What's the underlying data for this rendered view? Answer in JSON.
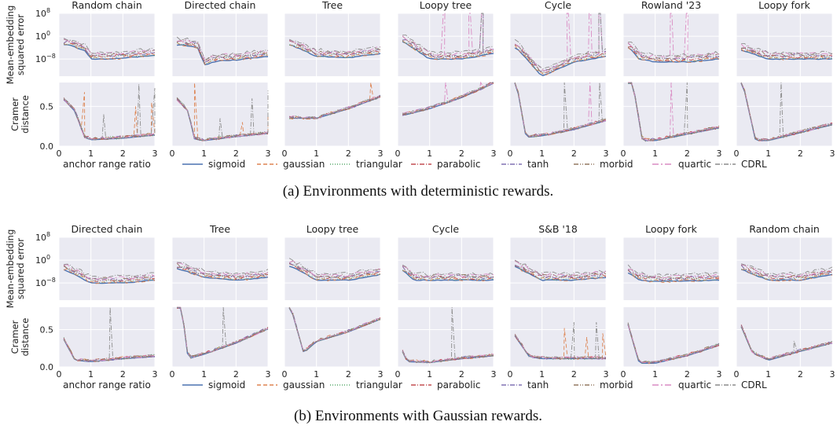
{
  "figure": {
    "captions": [
      "(a) Environments with deterministic rewards.",
      "(b) Environments with Gaussian rewards."
    ],
    "ylabel_top": [
      "Mean-embedding",
      "squared error"
    ],
    "ylabel_bottom": [
      "Cramer",
      "distance"
    ],
    "xlabel": "anchor range ratio",
    "yticks_top": [
      "10",
      "10",
      "10"
    ],
    "yticks_top_exp": [
      "8",
      "0",
      "−8"
    ],
    "yticks_bottom": [
      "0.5",
      "0.0"
    ],
    "xticks": [
      "0",
      "1",
      "2",
      "3"
    ],
    "legend": [
      {
        "name": "sigmoid",
        "color": "#4c72b0",
        "dash": ""
      },
      {
        "name": "gaussian",
        "color": "#dd8452",
        "dash": "5,3"
      },
      {
        "name": "triangular",
        "color": "#55a868",
        "dash": "1,2"
      },
      {
        "name": "parabolic",
        "color": "#c44e52",
        "dash": "6,2,1,2"
      },
      {
        "name": "tanh",
        "color": "#8172b3",
        "dash": "6,2,1,2"
      },
      {
        "name": "morbid",
        "color": "#937860",
        "dash": "6,2,1,2,1,2"
      },
      {
        "name": "quartic",
        "color": "#da8bc3",
        "dash": "8,3,2,3"
      },
      {
        "name": "CDRL",
        "color": "#8c8c8c",
        "dash": "6,2,1,2"
      }
    ],
    "rows": [
      {
        "titles": [
          "Random chain",
          "Directed chain",
          "Tree",
          "Loopy tree",
          "Cycle",
          "Rowland '23",
          "Loopy fork"
        ]
      },
      {
        "titles": [
          "Directed chain",
          "Tree",
          "Loopy tree",
          "Cycle",
          "S&B '18",
          "Loopy fork",
          "Random chain"
        ]
      }
    ]
  },
  "chart_data": {
    "type": "line",
    "xlabel": "anchor range ratio",
    "xlim": [
      0,
      3
    ],
    "series_names": [
      "sigmoid",
      "gaussian",
      "triangular",
      "parabolic",
      "tanh",
      "morbid",
      "quartic",
      "CDRL"
    ],
    "panels": [
      {
        "group": "deterministic",
        "env": "Random chain",
        "error_log10": [
          [
            0.3,
            -2
          ],
          [
            0.8,
            -4
          ],
          [
            1,
            -7
          ],
          [
            1.5,
            -7
          ],
          [
            2,
            -6.6
          ],
          [
            3,
            -5.8
          ]
        ],
        "cramer": [
          [
            0,
            0.66
          ],
          [
            0.5,
            0.45
          ],
          [
            0.8,
            0.12
          ],
          [
            1,
            0.09
          ],
          [
            2,
            0.11
          ],
          [
            3,
            0.15
          ]
        ],
        "spikes": {
          "gaussian": [
            [
              0.8,
              0.68
            ],
            [
              2.4,
              0.5
            ],
            [
              2.9,
              0.55
            ]
          ],
          "CDRL": [
            [
              1.4,
              0.4
            ],
            [
              2.5,
              0.78
            ],
            [
              3,
              0.73
            ]
          ]
        }
      },
      {
        "group": "deterministic",
        "env": "Directed chain",
        "error_log10": [
          [
            0.3,
            -2
          ],
          [
            0.8,
            -3
          ],
          [
            1,
            -9
          ],
          [
            1.5,
            -7.5
          ],
          [
            2,
            -7.3
          ],
          [
            3,
            -6
          ]
        ],
        "cramer": [
          [
            0,
            0.66
          ],
          [
            0.5,
            0.45
          ],
          [
            0.7,
            0.1
          ],
          [
            1,
            0.08
          ],
          [
            2,
            0.13
          ],
          [
            3,
            0.17
          ]
        ],
        "spikes": {
          "gaussian": [
            [
              0.7,
              0.8
            ],
            [
              2.2,
              0.3
            ],
            [
              3,
              0.4
            ]
          ],
          "CDRL": [
            [
              1.5,
              0.35
            ],
            [
              2.5,
              0.6
            ],
            [
              3,
              0.7
            ]
          ]
        }
      },
      {
        "group": "deterministic",
        "env": "Tree",
        "error_log10": [
          [
            0.2,
            -2
          ],
          [
            1,
            -6
          ],
          [
            2,
            -6.5
          ],
          [
            3,
            -5
          ]
        ],
        "cramer": [
          [
            1,
            0.36
          ],
          [
            2,
            0.48
          ],
          [
            3,
            0.63
          ]
        ],
        "spikes": {
          "gaussian": [
            [
              2.7,
              0.8
            ]
          ]
        }
      },
      {
        "group": "deterministic",
        "env": "Loopy tree",
        "error_log10": [
          [
            0.2,
            -1
          ],
          [
            1,
            -7
          ],
          [
            2,
            -7
          ],
          [
            3,
            -5
          ]
        ],
        "cramer": [
          [
            0.2,
            0.4
          ],
          [
            1,
            0.48
          ],
          [
            2,
            0.62
          ],
          [
            3,
            0.8
          ]
        ],
        "spikes": {
          "quartic": [
            [
              1.5,
              8
            ],
            [
              2.6,
              8
            ]
          ],
          "tanh": [
            [
              2.9,
              8
            ]
          ]
        }
      },
      {
        "group": "deterministic",
        "env": "Cycle",
        "error_log10": [
          [
            0.2,
            -3
          ],
          [
            1,
            -13
          ],
          [
            2,
            -8
          ],
          [
            3,
            -6
          ]
        ],
        "cramer": [
          [
            0.2,
            0.8
          ],
          [
            0.5,
            0.12
          ],
          [
            1,
            0.14
          ],
          [
            2,
            0.22
          ],
          [
            3,
            0.33
          ]
        ],
        "spikes": {
          "quartic": [
            [
              2.5,
              8
            ]
          ],
          "CDRL": [
            [
              1.7,
              8
            ],
            [
              2.8,
              8
            ]
          ]
        }
      },
      {
        "group": "deterministic",
        "env": "Rowland '23",
        "error_log10": [
          [
            0.2,
            -3
          ],
          [
            0.5,
            -7
          ],
          [
            1,
            -8
          ],
          [
            2,
            -8
          ],
          [
            3,
            -7
          ]
        ],
        "cramer": [
          [
            0.3,
            0.8
          ],
          [
            0.6,
            0.08
          ],
          [
            1,
            0.08
          ],
          [
            2,
            0.16
          ],
          [
            3,
            0.24
          ]
        ],
        "spikes": {
          "quartic": [
            [
              1.5,
              8
            ]
          ],
          "CDRL": [
            [
              2.0,
              8
            ]
          ]
        }
      },
      {
        "group": "deterministic",
        "env": "Loopy fork",
        "error_log10": [
          [
            0.2,
            -4
          ],
          [
            1,
            -7
          ],
          [
            3,
            -7
          ]
        ],
        "cramer": [
          [
            0.2,
            0.8
          ],
          [
            0.6,
            0.08
          ],
          [
            1,
            0.08
          ],
          [
            2,
            0.18
          ],
          [
            3,
            0.28
          ]
        ],
        "spikes": {
          "CDRL": [
            [
              1.4,
              0.8
            ]
          ]
        }
      },
      {
        "group": "gaussian",
        "env": "Directed chain",
        "error_log10": [
          [
            0.1,
            -2
          ],
          [
            0.5,
            -4
          ],
          [
            1,
            -7
          ],
          [
            2,
            -7
          ],
          [
            3,
            -6
          ]
        ],
        "cramer": [
          [
            0,
            0.5
          ],
          [
            0.5,
            0.1
          ],
          [
            1,
            0.08
          ],
          [
            2,
            0.12
          ],
          [
            3,
            0.15
          ]
        ],
        "spikes": {
          "CDRL": [
            [
              1.6,
              0.8
            ]
          ]
        }
      },
      {
        "group": "gaussian",
        "env": "Tree",
        "error_log10": [
          [
            0.2,
            -2
          ],
          [
            1,
            -5
          ],
          [
            2,
            -6
          ],
          [
            3,
            -5
          ]
        ],
        "cramer": [
          [
            0.3,
            0.8
          ],
          [
            0.5,
            0.12
          ],
          [
            1,
            0.18
          ],
          [
            2,
            0.33
          ],
          [
            3,
            0.52
          ]
        ],
        "spikes": {
          "CDRL": [
            [
              1.6,
              0.8
            ]
          ]
        }
      },
      {
        "group": "gaussian",
        "env": "Loopy tree",
        "error_log10": [
          [
            0.2,
            -1
          ],
          [
            1,
            -6
          ],
          [
            2,
            -6
          ],
          [
            3,
            -4
          ]
        ],
        "cramer": [
          [
            0.2,
            0.8
          ],
          [
            0.6,
            0.2
          ],
          [
            1,
            0.35
          ],
          [
            2,
            0.48
          ],
          [
            3,
            0.65
          ]
        ],
        "spikes": {}
      },
      {
        "group": "gaussian",
        "env": "Cycle",
        "error_log10": [
          [
            0.1,
            -2
          ],
          [
            0.5,
            -6
          ],
          [
            1,
            -6
          ],
          [
            3,
            -6
          ]
        ],
        "cramer": [
          [
            0,
            0.35
          ],
          [
            0.3,
            0.08
          ],
          [
            1,
            0.07
          ],
          [
            2,
            0.12
          ],
          [
            3,
            0.16
          ]
        ],
        "spikes": {
          "CDRL": [
            [
              1.7,
              0.8
            ]
          ]
        }
      },
      {
        "group": "gaussian",
        "env": "S&B '18",
        "error_log10": [
          [
            0.1,
            -1
          ],
          [
            1,
            -6
          ],
          [
            2,
            -6
          ],
          [
            3,
            -5
          ]
        ],
        "cramer": [
          [
            0,
            0.52
          ],
          [
            0.6,
            0.15
          ],
          [
            1,
            0.12
          ],
          [
            2,
            0.12
          ],
          [
            3,
            0.12
          ]
        ],
        "spikes": {
          "gaussian": [
            [
              1.7,
              0.52
            ],
            [
              2.4,
              0.4
            ],
            [
              2.9,
              0.45
            ]
          ],
          "CDRL": [
            [
              2.0,
              0.6
            ],
            [
              2.7,
              0.6
            ]
          ]
        }
      },
      {
        "group": "gaussian",
        "env": "Loopy fork",
        "error_log10": [
          [
            0.1,
            -3
          ],
          [
            0.5,
            -6
          ],
          [
            1,
            -6.5
          ],
          [
            3,
            -6
          ]
        ],
        "cramer": [
          [
            0,
            0.8
          ],
          [
            0.5,
            0.06
          ],
          [
            1,
            0.06
          ],
          [
            2,
            0.16
          ],
          [
            3,
            0.3
          ]
        ],
        "spikes": {}
      },
      {
        "group": "gaussian",
        "env": "Random chain",
        "error_log10": [
          [
            0.1,
            -2
          ],
          [
            1,
            -6
          ],
          [
            2,
            -6
          ],
          [
            3,
            -4
          ]
        ],
        "cramer": [
          [
            0,
            0.7
          ],
          [
            0.5,
            0.2
          ],
          [
            1,
            0.1
          ],
          [
            2,
            0.22
          ],
          [
            3,
            0.33
          ]
        ],
        "spikes": {
          "CDRL": [
            [
              1.8,
              0.35
            ]
          ]
        }
      }
    ]
  }
}
